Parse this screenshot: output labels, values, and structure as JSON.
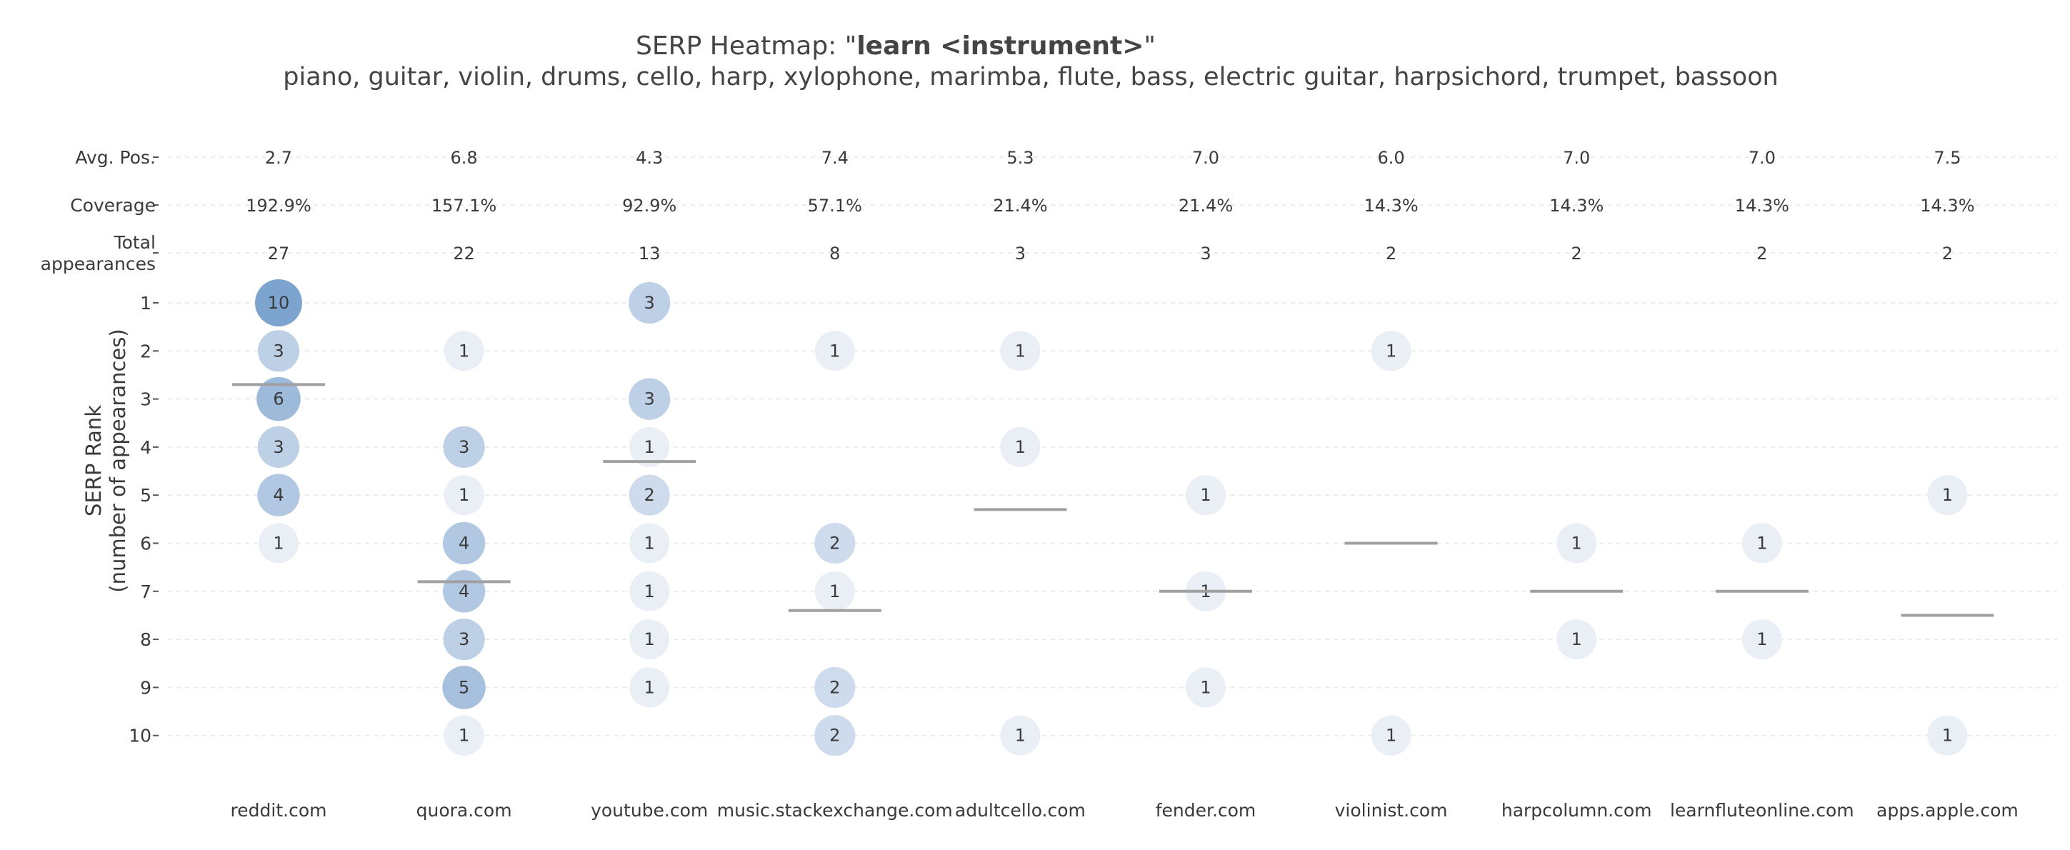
{
  "chart_data": {
    "type": "scatter",
    "title": {
      "prefix": "SERP Heatmap: \"",
      "bold": "learn <instrument>",
      "suffix": "\""
    },
    "subtitle": "piano, guitar, violin, drums, cello, harp, xylophone, marimba, flute, bass, electric guitar, harpsichord, trumpet, bassoon",
    "ylabel_lines": [
      "SERP Rank",
      "(number of appearances)"
    ],
    "domains": [
      "reddit.com",
      "quora.com",
      "youtube.com",
      "music.stackexchange.com",
      "adultcello.com",
      "fender.com",
      "violinist.com",
      "harpcolumn.com",
      "learnfluteonline.com",
      "apps.apple.com"
    ],
    "summary_rows": [
      {
        "label": "Avg. Pos.",
        "values": [
          "2.7",
          "6.8",
          "4.3",
          "7.4",
          "5.3",
          "7.0",
          "6.0",
          "7.0",
          "7.0",
          "7.5"
        ]
      },
      {
        "label": "Coverage",
        "values": [
          "192.9%",
          "157.1%",
          "92.9%",
          "57.1%",
          "21.4%",
          "21.4%",
          "14.3%",
          "14.3%",
          "14.3%",
          "14.3%"
        ]
      },
      {
        "label_lines": [
          "Total",
          "appearances"
        ],
        "values": [
          "27",
          "22",
          "13",
          "8",
          "3",
          "3",
          "2",
          "2",
          "2",
          "2"
        ]
      }
    ],
    "ranks": [
      1,
      2,
      3,
      4,
      5,
      6,
      7,
      8,
      9,
      10
    ],
    "avg_positions": [
      2.7,
      6.8,
      4.3,
      7.4,
      5.3,
      7.0,
      6.0,
      7.0,
      7.0,
      7.5
    ],
    "counts": {
      "reddit.com": {
        "1": 10,
        "2": 3,
        "3": 6,
        "4": 3,
        "5": 4,
        "6": 1
      },
      "quora.com": {
        "2": 1,
        "4": 3,
        "5": 1,
        "6": 4,
        "7": 4,
        "8": 3,
        "9": 5,
        "10": 1
      },
      "youtube.com": {
        "1": 3,
        "3": 3,
        "4": 1,
        "5": 2,
        "6": 1,
        "7": 1,
        "8": 1,
        "9": 1
      },
      "music.stackexchange.com": {
        "2": 1,
        "6": 2,
        "7": 1,
        "9": 2,
        "10": 2
      },
      "adultcello.com": {
        "2": 1,
        "4": 1,
        "10": 1
      },
      "fender.com": {
        "5": 1,
        "7": 1,
        "9": 1
      },
      "violinist.com": {
        "2": 1,
        "10": 1
      },
      "harpcolumn.com": {
        "6": 1,
        "8": 1
      },
      "learnfluteonline.com": {
        "6": 1,
        "8": 1
      },
      "apps.apple.com": {
        "5": 1,
        "10": 1
      }
    },
    "ylim": [
      1,
      10
    ],
    "y_reversed": true,
    "grid": true,
    "colors": {
      "bubble_low": "#eaeff6",
      "bubble_high": "#7da3cf",
      "avg_line": "#a0a0a0",
      "grid": "#e6e6e6",
      "text": "#3a3a3a"
    }
  }
}
